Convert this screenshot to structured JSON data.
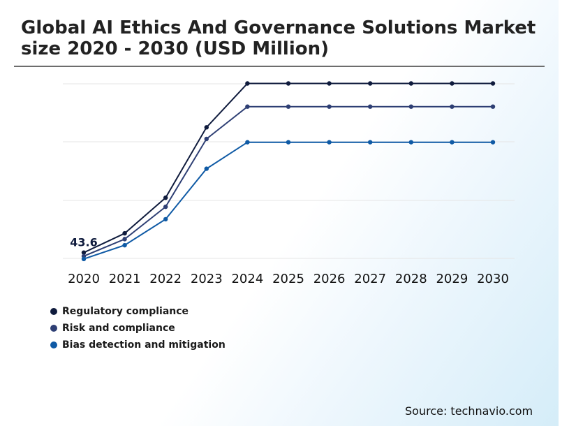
{
  "title": "Global AI Ethics And Governance Solutions Market\nsize 2020 - 2030 (USD Million)",
  "source": "Source: technavio.com",
  "colors": {
    "regulatory": "#0f1b3d",
    "risk": "#2e3f74",
    "bias": "#0f5aa5",
    "grid": "#e5e5e5"
  },
  "chart_data": {
    "type": "line",
    "title": "Global AI Ethics And Governance Solutions Market size 2020 - 2030 (USD Million)",
    "xlabel": "",
    "ylabel": "",
    "x": [
      "2020",
      "2021",
      "2022",
      "2023",
      "2024",
      "2025",
      "2026",
      "2027",
      "2028",
      "2029",
      "2030"
    ],
    "ylim": [
      0,
      1200
    ],
    "grid": true,
    "legend_position": "bottom-left",
    "data_labels": [
      {
        "series": "Regulatory compliance",
        "x": "2020",
        "text": "43.6"
      }
    ],
    "series": [
      {
        "name": "Regulatory compliance",
        "color": "#0f1b3d",
        "values": [
          43.6,
          160,
          375,
          800,
          1065,
          1065,
          1065,
          1065,
          1065,
          1065,
          1065
        ]
      },
      {
        "name": "Risk and compliance",
        "color": "#2e3f74",
        "values": [
          22,
          125,
          320,
          730,
          925,
          925,
          925,
          925,
          925,
          925,
          925
        ]
      },
      {
        "name": "Bias detection and mitigation",
        "color": "#0f5aa5",
        "values": [
          5,
          88,
          245,
          550,
          710,
          710,
          710,
          710,
          710,
          710,
          710
        ]
      }
    ]
  }
}
